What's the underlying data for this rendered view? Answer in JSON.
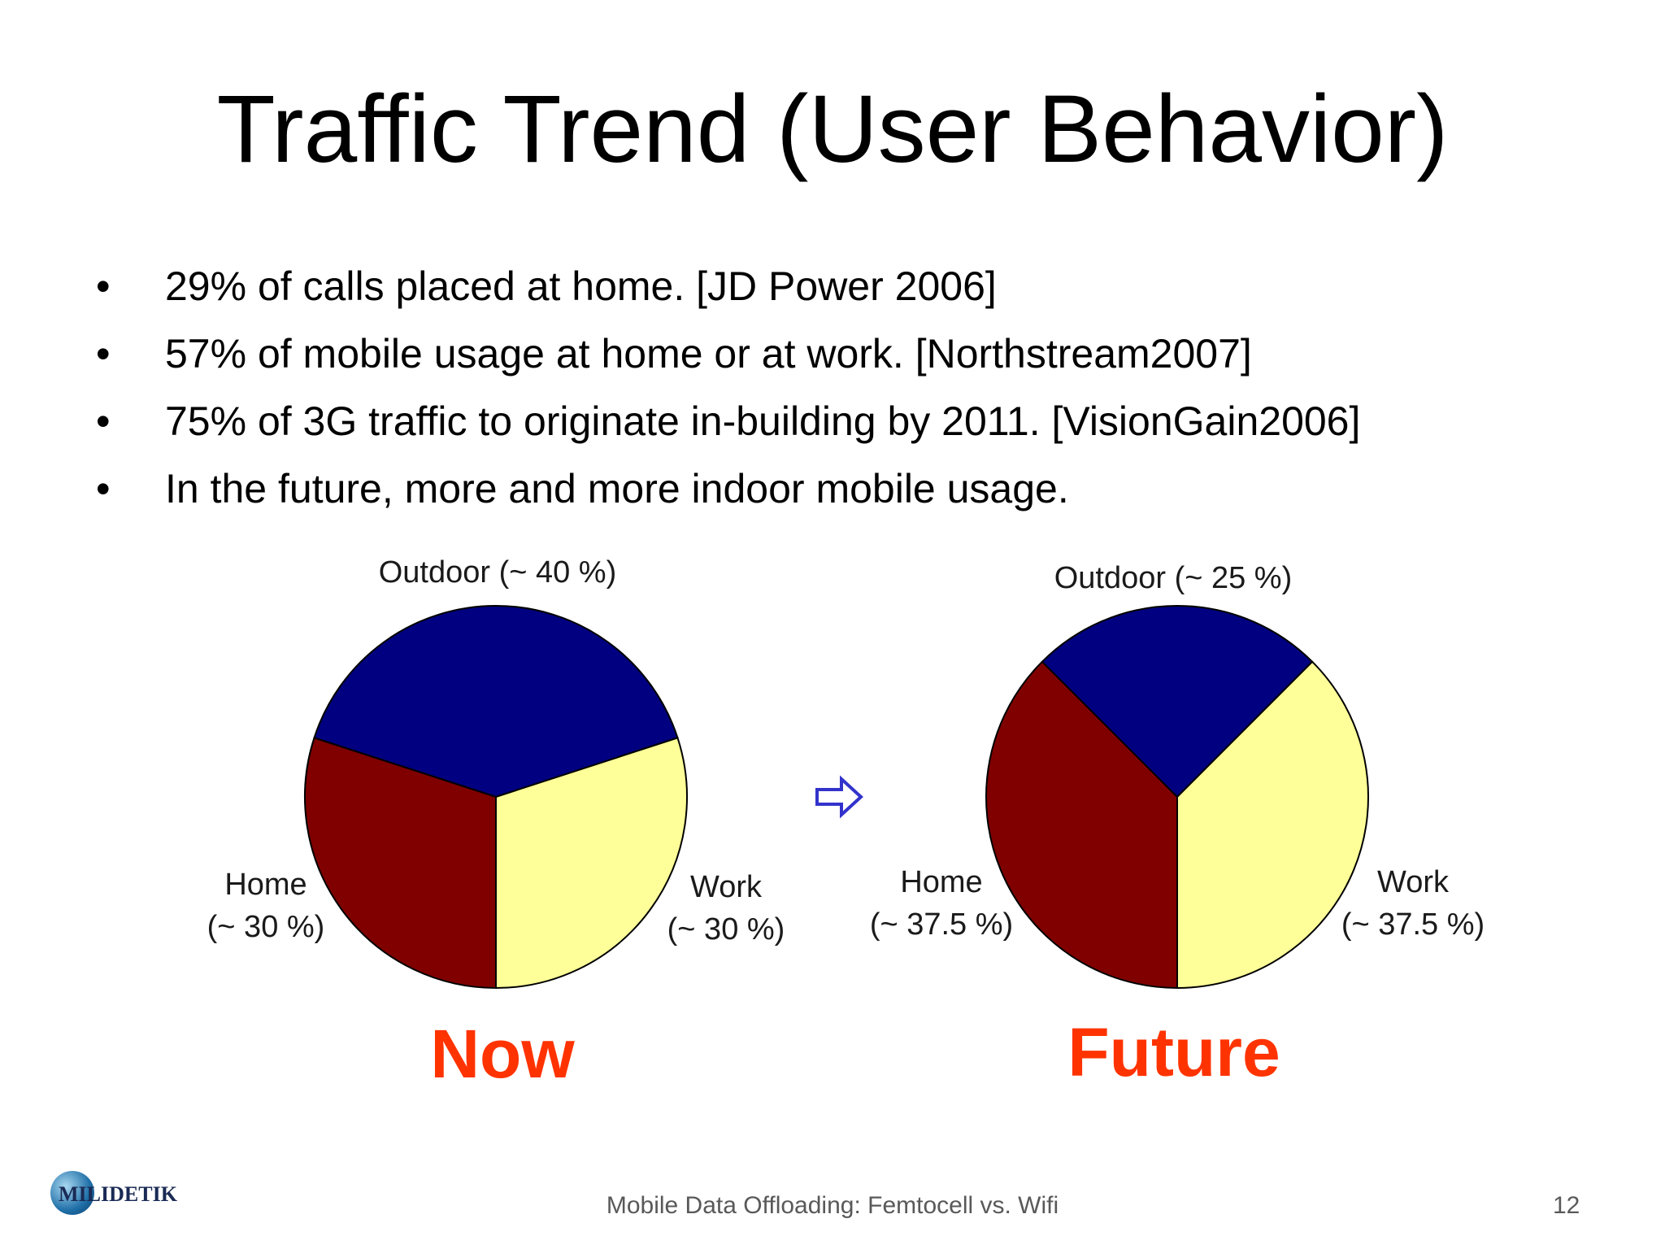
{
  "slide": {
    "title": "Traffic Trend (User Behavior)",
    "bullets": [
      "29% of calls placed at home. [JD Power 2006]",
      "57% of mobile usage at home or at work. [Northstream2007]",
      "75% of 3G traffic to originate in-building by 2011. [VisionGain2006]",
      "In the future, more and more indoor mobile usage."
    ],
    "footer": "Mobile Data Offloading: Femtocell vs. Wifi",
    "page_number": "12",
    "logo_text": "MILIDETIK",
    "logo_icon": "globe-logo-icon",
    "arrow_icon": "right-arrow-icon"
  },
  "colors": {
    "outdoor": "#000080",
    "home": "#800000",
    "work": "#ffff99",
    "caption": "#ff3300",
    "arrow": "#3333cc"
  },
  "chart_data": [
    {
      "type": "pie",
      "caption": "Now",
      "slices": [
        {
          "category": "Outdoor",
          "value": 40,
          "label_line1": "Outdoor (~ 40 %)",
          "label_line2": ""
        },
        {
          "category": "Work",
          "value": 30,
          "label_line1": "Work",
          "label_line2": "(~ 30 %)"
        },
        {
          "category": "Home",
          "value": 30,
          "label_line1": "Home",
          "label_line2": "(~ 30 %)"
        }
      ]
    },
    {
      "type": "pie",
      "caption": "Future",
      "slices": [
        {
          "category": "Outdoor",
          "value": 25,
          "label_line1": "Outdoor (~ 25 %)",
          "label_line2": ""
        },
        {
          "category": "Work",
          "value": 37.5,
          "label_line1": "Work",
          "label_line2": "(~ 37.5 %)"
        },
        {
          "category": "Home",
          "value": 37.5,
          "label_line1": "Home",
          "label_line2": "(~ 37.5 %)"
        }
      ]
    }
  ]
}
